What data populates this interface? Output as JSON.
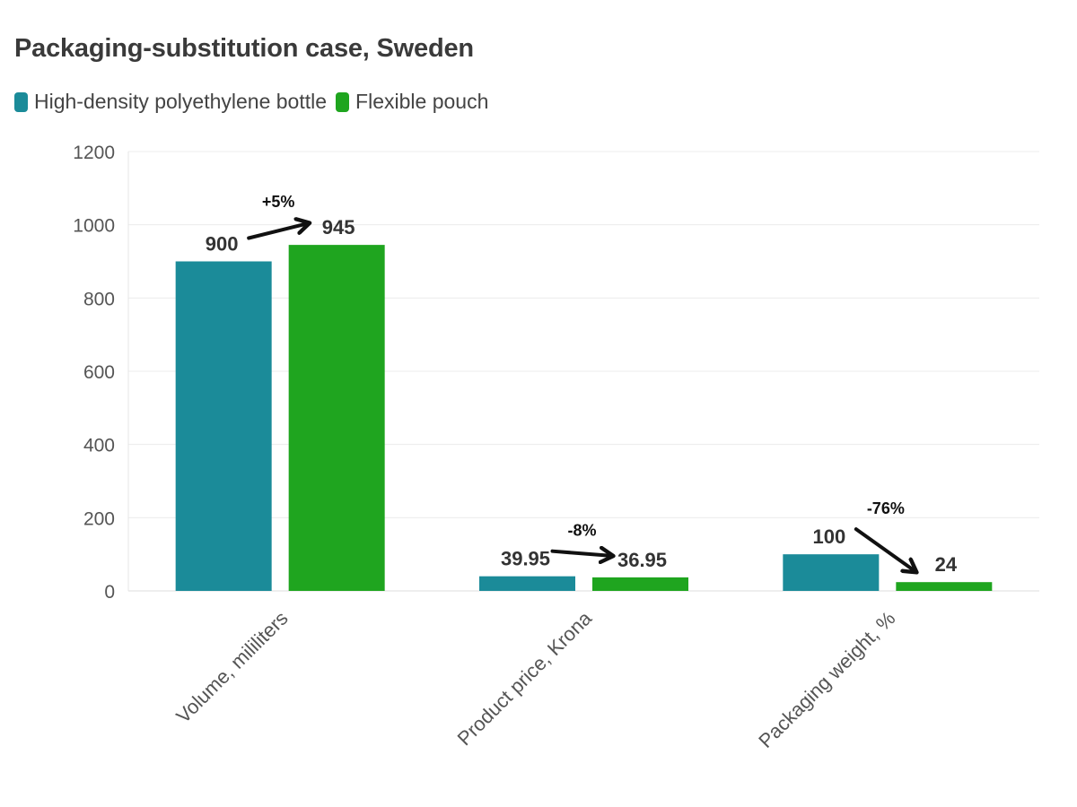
{
  "chart_data": {
    "type": "bar",
    "title": "Packaging-substitution case, Sweden",
    "categories": [
      "Volume, mililiters",
      "Product price, Krona",
      "Packaging weight, %"
    ],
    "series": [
      {
        "name": "High-density polyethylene bottle",
        "color": "#1b8b99",
        "values": [
          900,
          39.95,
          100
        ],
        "labels": [
          "900",
          "39.95",
          "100"
        ]
      },
      {
        "name": "Flexible pouch",
        "color": "#1fa51f",
        "values": [
          945,
          36.95,
          24
        ],
        "labels": [
          "945",
          "36.95",
          "24"
        ]
      }
    ],
    "ylim": [
      0,
      1200
    ],
    "yticks": [
      "0",
      "200",
      "400",
      "600",
      "800",
      "1000",
      "1200"
    ],
    "grid": true,
    "legend": "top-left",
    "annotations": [
      "+5%",
      "-8%",
      "-76%"
    ]
  }
}
